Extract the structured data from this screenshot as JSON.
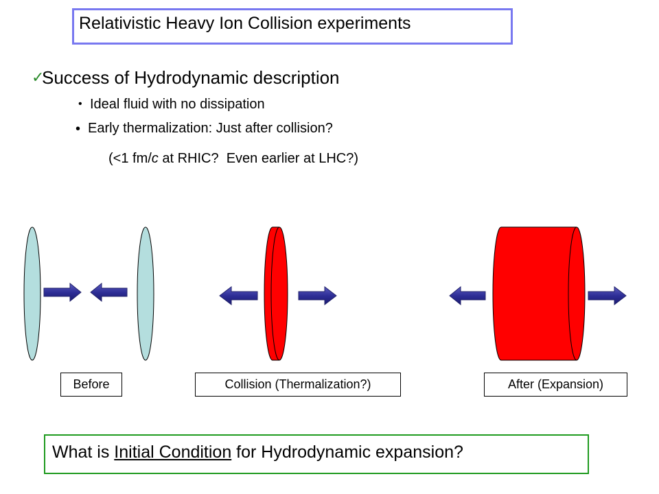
{
  "header": {
    "title": "Relativistic Heavy Ion Collision experiments"
  },
  "heading": "Success of Hydrodynamic description",
  "bullets": [
    "Ideal fluid with no dissipation",
    "Early thermalization: Just after collision?"
  ],
  "note": {
    "before": "(<1 fm/",
    "italic": "c",
    "after": " at RHIC?  Even earlier at LHC?)"
  },
  "stages": [
    "Before",
    "Collision (Thermalization?)",
    "After (Expansion)"
  ],
  "question": {
    "before": "What is ",
    "underlined": "Initial Condition",
    "after": " for Hydrodynamic expansion?"
  }
}
